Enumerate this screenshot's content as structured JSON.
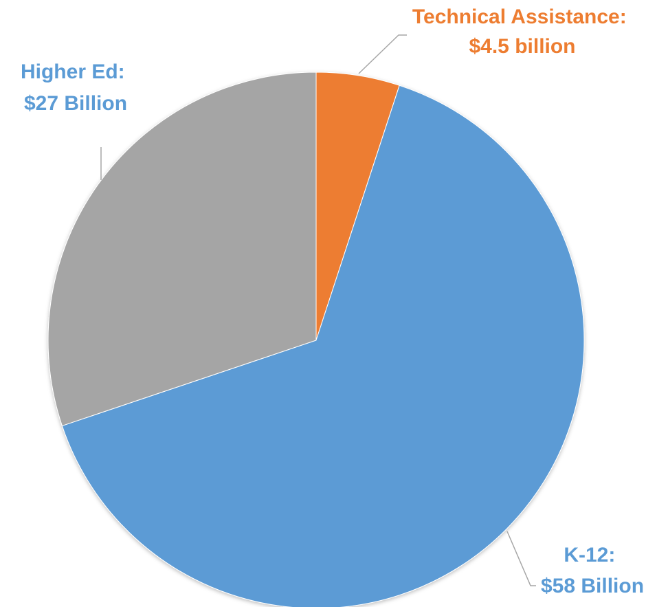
{
  "chart_data": {
    "type": "pie",
    "title": "",
    "slices": [
      {
        "name": "Technical Assistance",
        "value": 4.5,
        "color": "#ED7D31",
        "label_lines": [
          "Technical Assistance:",
          "$4.5 billion"
        ]
      },
      {
        "name": "K-12",
        "value": 58,
        "color": "#5B9BD5",
        "label_lines": [
          "K-12:",
          "$58 Billion"
        ]
      },
      {
        "name": "Higher Ed",
        "value": 27,
        "color": "#A5A5A5",
        "label_lines": [
          "Higher Ed:",
          "$27  Billion"
        ]
      }
    ],
    "start_angle_deg": 0,
    "direction": "clockwise"
  }
}
